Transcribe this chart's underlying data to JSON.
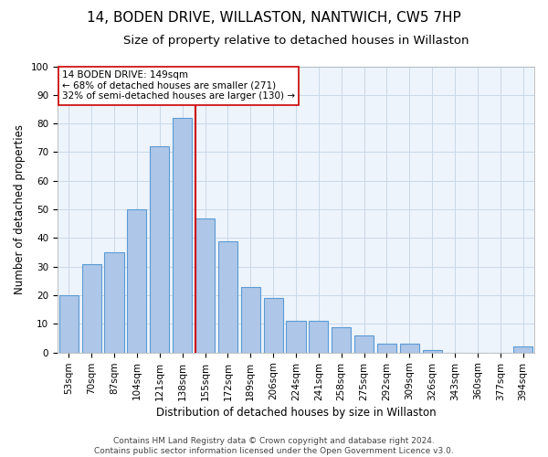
{
  "title": "14, BODEN DRIVE, WILLASTON, NANTWICH, CW5 7HP",
  "subtitle": "Size of property relative to detached houses in Willaston",
  "xlabel": "Distribution of detached houses by size in Willaston",
  "ylabel": "Number of detached properties",
  "bar_labels": [
    "53sqm",
    "70sqm",
    "87sqm",
    "104sqm",
    "121sqm",
    "138sqm",
    "155sqm",
    "172sqm",
    "189sqm",
    "206sqm",
    "224sqm",
    "241sqm",
    "258sqm",
    "275sqm",
    "292sqm",
    "309sqm",
    "326sqm",
    "343sqm",
    "360sqm",
    "377sqm",
    "394sqm"
  ],
  "bar_values": [
    20,
    31,
    35,
    50,
    72,
    82,
    47,
    39,
    23,
    19,
    11,
    11,
    9,
    6,
    3,
    3,
    1,
    0,
    0,
    0,
    2
  ],
  "bar_color": "#aec6e8",
  "bar_edge_color": "#5b9bd5",
  "grid_color": "#c8d8e8",
  "background_color": "#eef4fb",
  "vline_x": 5.57,
  "vline_color": "#cc0000",
  "annotation_text": "14 BODEN DRIVE: 149sqm\n← 68% of detached houses are smaller (271)\n32% of semi-detached houses are larger (130) →",
  "annotation_box_color": "#ffffff",
  "annotation_box_edge_color": "#cc0000",
  "footer_line1": "Contains HM Land Registry data © Crown copyright and database right 2024.",
  "footer_line2": "Contains public sector information licensed under the Open Government Licence v3.0.",
  "ylim": [
    0,
    100
  ],
  "yticks": [
    0,
    10,
    20,
    30,
    40,
    50,
    60,
    70,
    80,
    90,
    100
  ],
  "title_fontsize": 11,
  "subtitle_fontsize": 9.5,
  "axis_label_fontsize": 8.5,
  "tick_fontsize": 7.5,
  "annotation_fontsize": 7.5,
  "footer_fontsize": 6.5
}
